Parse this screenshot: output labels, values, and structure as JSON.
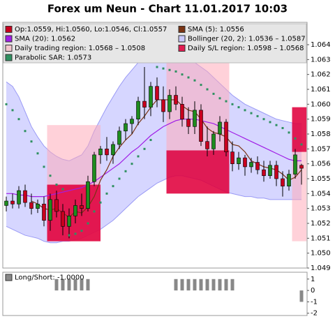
{
  "chart_data": [
    {
      "type": "candlestick",
      "title": "Forex um Neun - Chart 11.01.2017 10:03",
      "ohlc": {
        "name": "Op:1.0559, Hi:1.0560, Lo:1.0546, Cl:1.0557",
        "up_color": "#1e8c1e",
        "down_color": "#c8001e",
        "open": [
          1.0532,
          1.0535,
          1.0533,
          1.0542,
          1.0534,
          1.053,
          1.0533,
          1.0522,
          1.0536,
          1.0528,
          1.0518,
          1.0525,
          1.0532,
          1.053,
          1.0548,
          1.0566,
          1.057,
          1.0566,
          1.0573,
          1.0582,
          1.0587,
          1.059,
          1.0602,
          1.0598,
          1.0612,
          1.0603,
          1.0595,
          1.0606,
          1.06,
          1.059,
          1.0585,
          1.0596,
          1.0575,
          1.057,
          1.058,
          1.0588,
          1.0568,
          1.056,
          1.0564,
          1.0558,
          1.0561,
          1.0556,
          1.0552,
          1.0559,
          1.055,
          1.0545,
          1.0553,
          1.0559
        ],
        "high": [
          1.0538,
          1.054,
          1.0545,
          1.0546,
          1.054,
          1.0536,
          1.0538,
          1.054,
          1.0542,
          1.0533,
          1.053,
          1.0536,
          1.054,
          1.0552,
          1.0568,
          1.0572,
          1.0578,
          1.0575,
          1.0585,
          1.059,
          1.0592,
          1.0605,
          1.0625,
          1.0615,
          1.0618,
          1.0612,
          1.061,
          1.0612,
          1.0605,
          1.0598,
          1.0602,
          1.06,
          1.0585,
          1.0582,
          1.0592,
          1.059,
          1.0575,
          1.0568,
          1.0566,
          1.0564,
          1.0565,
          1.0562,
          1.0562,
          1.0562,
          1.0555,
          1.0556,
          1.057,
          1.056
        ],
        "low": [
          1.0528,
          1.053,
          1.053,
          1.0531,
          1.0526,
          1.0527,
          1.0518,
          1.0515,
          1.0524,
          1.0512,
          1.051,
          1.052,
          1.0525,
          1.0528,
          1.0545,
          1.056,
          1.0562,
          1.056,
          1.057,
          1.0576,
          1.058,
          1.0586,
          1.059,
          1.0592,
          1.0598,
          1.0588,
          1.059,
          1.0596,
          1.0585,
          1.058,
          1.058,
          1.0572,
          1.0565,
          1.0566,
          1.0575,
          1.0565,
          1.0555,
          1.0556,
          1.0552,
          1.0554,
          1.0553,
          1.0548,
          1.055,
          1.0545,
          1.0538,
          1.0542,
          1.055,
          1.0546
        ],
        "close": [
          1.0535,
          1.0533,
          1.0542,
          1.0534,
          1.053,
          1.0533,
          1.0522,
          1.0536,
          1.0528,
          1.0518,
          1.0525,
          1.0532,
          1.053,
          1.0548,
          1.0566,
          1.057,
          1.0566,
          1.0573,
          1.0582,
          1.0587,
          1.059,
          1.0602,
          1.0598,
          1.0612,
          1.0603,
          1.0595,
          1.0606,
          1.06,
          1.059,
          1.0585,
          1.0596,
          1.0575,
          1.057,
          1.058,
          1.0588,
          1.0568,
          1.056,
          1.0564,
          1.0558,
          1.0561,
          1.0556,
          1.0552,
          1.0559,
          1.055,
          1.0545,
          1.0553,
          1.0566,
          1.0557
        ]
      },
      "lines": [
        {
          "name": "SMA (5): 1.0556",
          "color": "#7a3414",
          "values": [
            null,
            null,
            null,
            null,
            1.0535,
            1.0533,
            1.053,
            1.0529,
            1.053,
            1.0527,
            1.0524,
            1.0528,
            1.0527,
            1.0531,
            1.0538,
            1.0549,
            1.0556,
            1.0565,
            1.0571,
            1.0576,
            1.058,
            1.0587,
            1.0592,
            1.0598,
            1.0603,
            1.0603,
            1.0603,
            1.0603,
            1.0599,
            1.0596,
            1.0595,
            1.059,
            1.0584,
            1.0581,
            1.058,
            1.0578,
            1.0573,
            1.0572,
            1.0568,
            1.0562,
            1.056,
            1.0558,
            1.0557,
            1.0556,
            1.0553,
            1.0549,
            1.0551,
            1.0556
          ]
        },
        {
          "name": "SMA (20): 1.0562",
          "color": "#a01ee6",
          "values": [
            1.054,
            1.054,
            1.0539,
            1.0539,
            1.0538,
            1.0538,
            1.0538,
            1.0539,
            1.054,
            1.0541,
            1.0542,
            1.0543,
            1.0544,
            1.0546,
            1.0548,
            1.0551,
            1.0554,
            1.0557,
            1.056,
            1.0564,
            1.0568,
            1.0571,
            1.0575,
            1.0579,
            1.0582,
            1.0585,
            1.0587,
            1.0589,
            1.059,
            1.059,
            1.059,
            1.0589,
            1.0588,
            1.0587,
            1.0585,
            1.0583,
            1.0581,
            1.0579,
            1.0577,
            1.0575,
            1.0573,
            1.0571,
            1.0569,
            1.0567,
            1.0565,
            1.0563,
            1.0562,
            1.0562
          ]
        }
      ],
      "band": {
        "name": "Bollinger (20, 2): 1.0536 – 1.0587",
        "color": "#c8c8ff",
        "edge_color": "#9a9af5",
        "upper": [
          1.0615,
          1.0612,
          1.0605,
          1.0595,
          1.0585,
          1.0578,
          1.0572,
          1.0568,
          1.0565,
          1.0563,
          1.0562,
          1.0564,
          1.0566,
          1.0572,
          1.0582,
          1.059,
          1.0598,
          1.0605,
          1.0612,
          1.0618,
          1.0623,
          1.0628,
          1.0632,
          1.0634,
          1.0635,
          1.0635,
          1.0634,
          1.0633,
          1.0632,
          1.063,
          1.0628,
          1.0625,
          1.0622,
          1.0618,
          1.0614,
          1.061,
          1.0606,
          1.0603,
          1.06,
          1.0598,
          1.0596,
          1.0594,
          1.0592,
          1.059,
          1.0589,
          1.0588,
          1.0587,
          1.0587
        ],
        "lower": [
          1.0518,
          1.0516,
          1.0514,
          1.0512,
          1.0511,
          1.051,
          1.0508,
          1.0507,
          1.0507,
          1.0508,
          1.0508,
          1.0509,
          1.051,
          1.0512,
          1.0514,
          1.0516,
          1.0519,
          1.0522,
          1.0526,
          1.053,
          1.0534,
          1.0538,
          1.0541,
          1.0544,
          1.0547,
          1.0549,
          1.0551,
          1.0552,
          1.0552,
          1.0551,
          1.055,
          1.0549,
          1.0547,
          1.0545,
          1.0543,
          1.0541,
          1.054,
          1.0539,
          1.0538,
          1.0538,
          1.0537,
          1.0537,
          1.0536,
          1.0536,
          1.0536,
          1.0536,
          1.0536,
          1.0536
        ]
      },
      "regions": [
        {
          "name": "Daily trading region: 1.0568 – 1.0508",
          "color": "#ffa8b888",
          "items": [
            {
              "from": 6.5,
              "to": 15,
              "low": 1.0508,
              "high": 1.0586
            },
            {
              "from": 25.5,
              "to": 35.5,
              "low": 1.0569,
              "high": 1.063
            },
            {
              "from": 45.5,
              "to": 47.8,
              "low": 1.0508,
              "high": 1.0568
            }
          ]
        },
        {
          "name": "Daily S/L region: 1.0598 – 1.0568",
          "color": "#e0003ce0",
          "items": [
            {
              "from": 6.5,
              "to": 15,
              "low": 1.0508,
              "high": 1.0546
            },
            {
              "from": 25.5,
              "to": 35.5,
              "low": 1.054,
              "high": 1.0569
            },
            {
              "from": 45.5,
              "to": 47.8,
              "low": 1.0568,
              "high": 1.0598
            }
          ]
        }
      ],
      "sar": {
        "name": "Parabolic SAR: 1.0573",
        "color": "#2e9060",
        "values": [
          1.06,
          1.0596,
          1.059,
          1.0582,
          1.0575,
          1.0567,
          1.0558,
          1.0552,
          1.0546,
          1.0543,
          1.0512,
          1.0513,
          1.0515,
          1.052,
          1.0528,
          1.0534,
          1.054,
          1.0545,
          1.055,
          1.0555,
          1.056,
          1.0565,
          1.057,
          1.0576,
          1.0625,
          1.0624,
          1.0623,
          1.0622,
          1.062,
          1.0618,
          1.0616,
          1.0613,
          1.061,
          1.0607,
          1.0604,
          1.0602,
          1.06,
          1.0598,
          1.0596,
          1.0594,
          1.0592,
          1.059,
          1.0588,
          1.0586,
          1.0584,
          1.0581,
          1.0577,
          1.0573
        ]
      },
      "ylim": [
        1.049,
        1.0655
      ],
      "yticks": [
        1.049,
        {
          "value": 1.05,
          "label": "1.050"
        },
        1.051,
        1.052,
        1.053,
        1.054,
        1.055,
        1.056,
        1.057,
        1.058,
        1.059,
        {
          "value": 1.06,
          "label": "1.060"
        },
        1.061,
        1.062,
        1.063,
        1.064
      ]
    },
    {
      "type": "bar",
      "series": [
        {
          "name": "Long/Short: -1.0000",
          "color": "#888888",
          "values": [
            0,
            0,
            0,
            0,
            0,
            0,
            0,
            0,
            1,
            1,
            1,
            1,
            1,
            1,
            0,
            0,
            0,
            0,
            0,
            0,
            0,
            0,
            0,
            0,
            0,
            0,
            0,
            1,
            1,
            1,
            1,
            1,
            1,
            1,
            1,
            1,
            1,
            0,
            0,
            0,
            0,
            0,
            0,
            0,
            0,
            0,
            0,
            -1
          ]
        }
      ],
      "ylim": [
        -2.2,
        1.6
      ],
      "yticks": [
        1,
        0,
        -1,
        -2
      ]
    }
  ]
}
